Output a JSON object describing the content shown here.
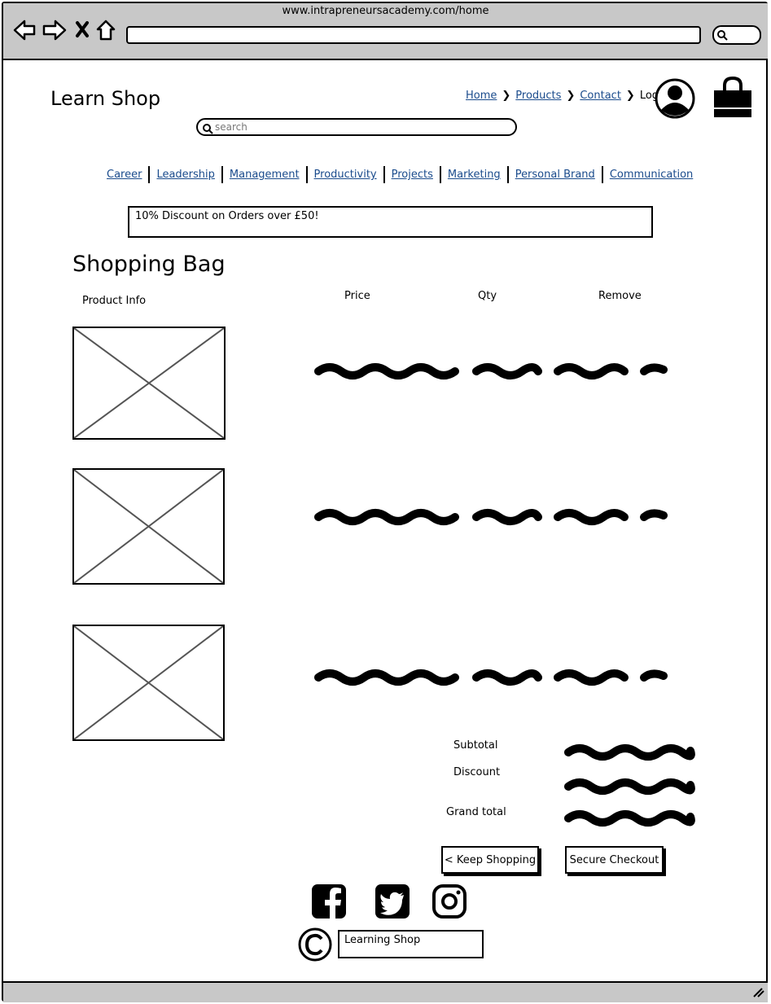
{
  "browser": {
    "url": "www.intrapreneursacademy.com/home"
  },
  "header": {
    "logo": "Learn Shop",
    "breadcrumb": [
      "Home",
      "Products",
      "Contact",
      "Login"
    ],
    "search_placeholder": "search"
  },
  "categories": [
    "Career",
    "Leadership",
    "Management",
    "Productivity",
    "Projects",
    "Marketing",
    "Personal Brand",
    "Communication"
  ],
  "banner": "10% Discount on Orders over £50!",
  "bag": {
    "title": "Shopping Bag",
    "columns": {
      "product_info": "Product Info",
      "price": "Price",
      "qty": "Qty",
      "remove": "Remove"
    }
  },
  "summary": {
    "subtotal": "Subtotal",
    "discount": "Discount",
    "grand_total": "Grand total"
  },
  "buttons": {
    "keep_shopping": "< Keep Shopping",
    "secure_checkout": "Secure Checkout"
  },
  "footer": {
    "copyright_text": "Learning Shop",
    "social_icons": [
      "facebook-icon",
      "twitter-icon",
      "instagram-icon"
    ]
  },
  "colors": {
    "chrome": "#c8c8c8",
    "link": "#1a4b8c"
  }
}
